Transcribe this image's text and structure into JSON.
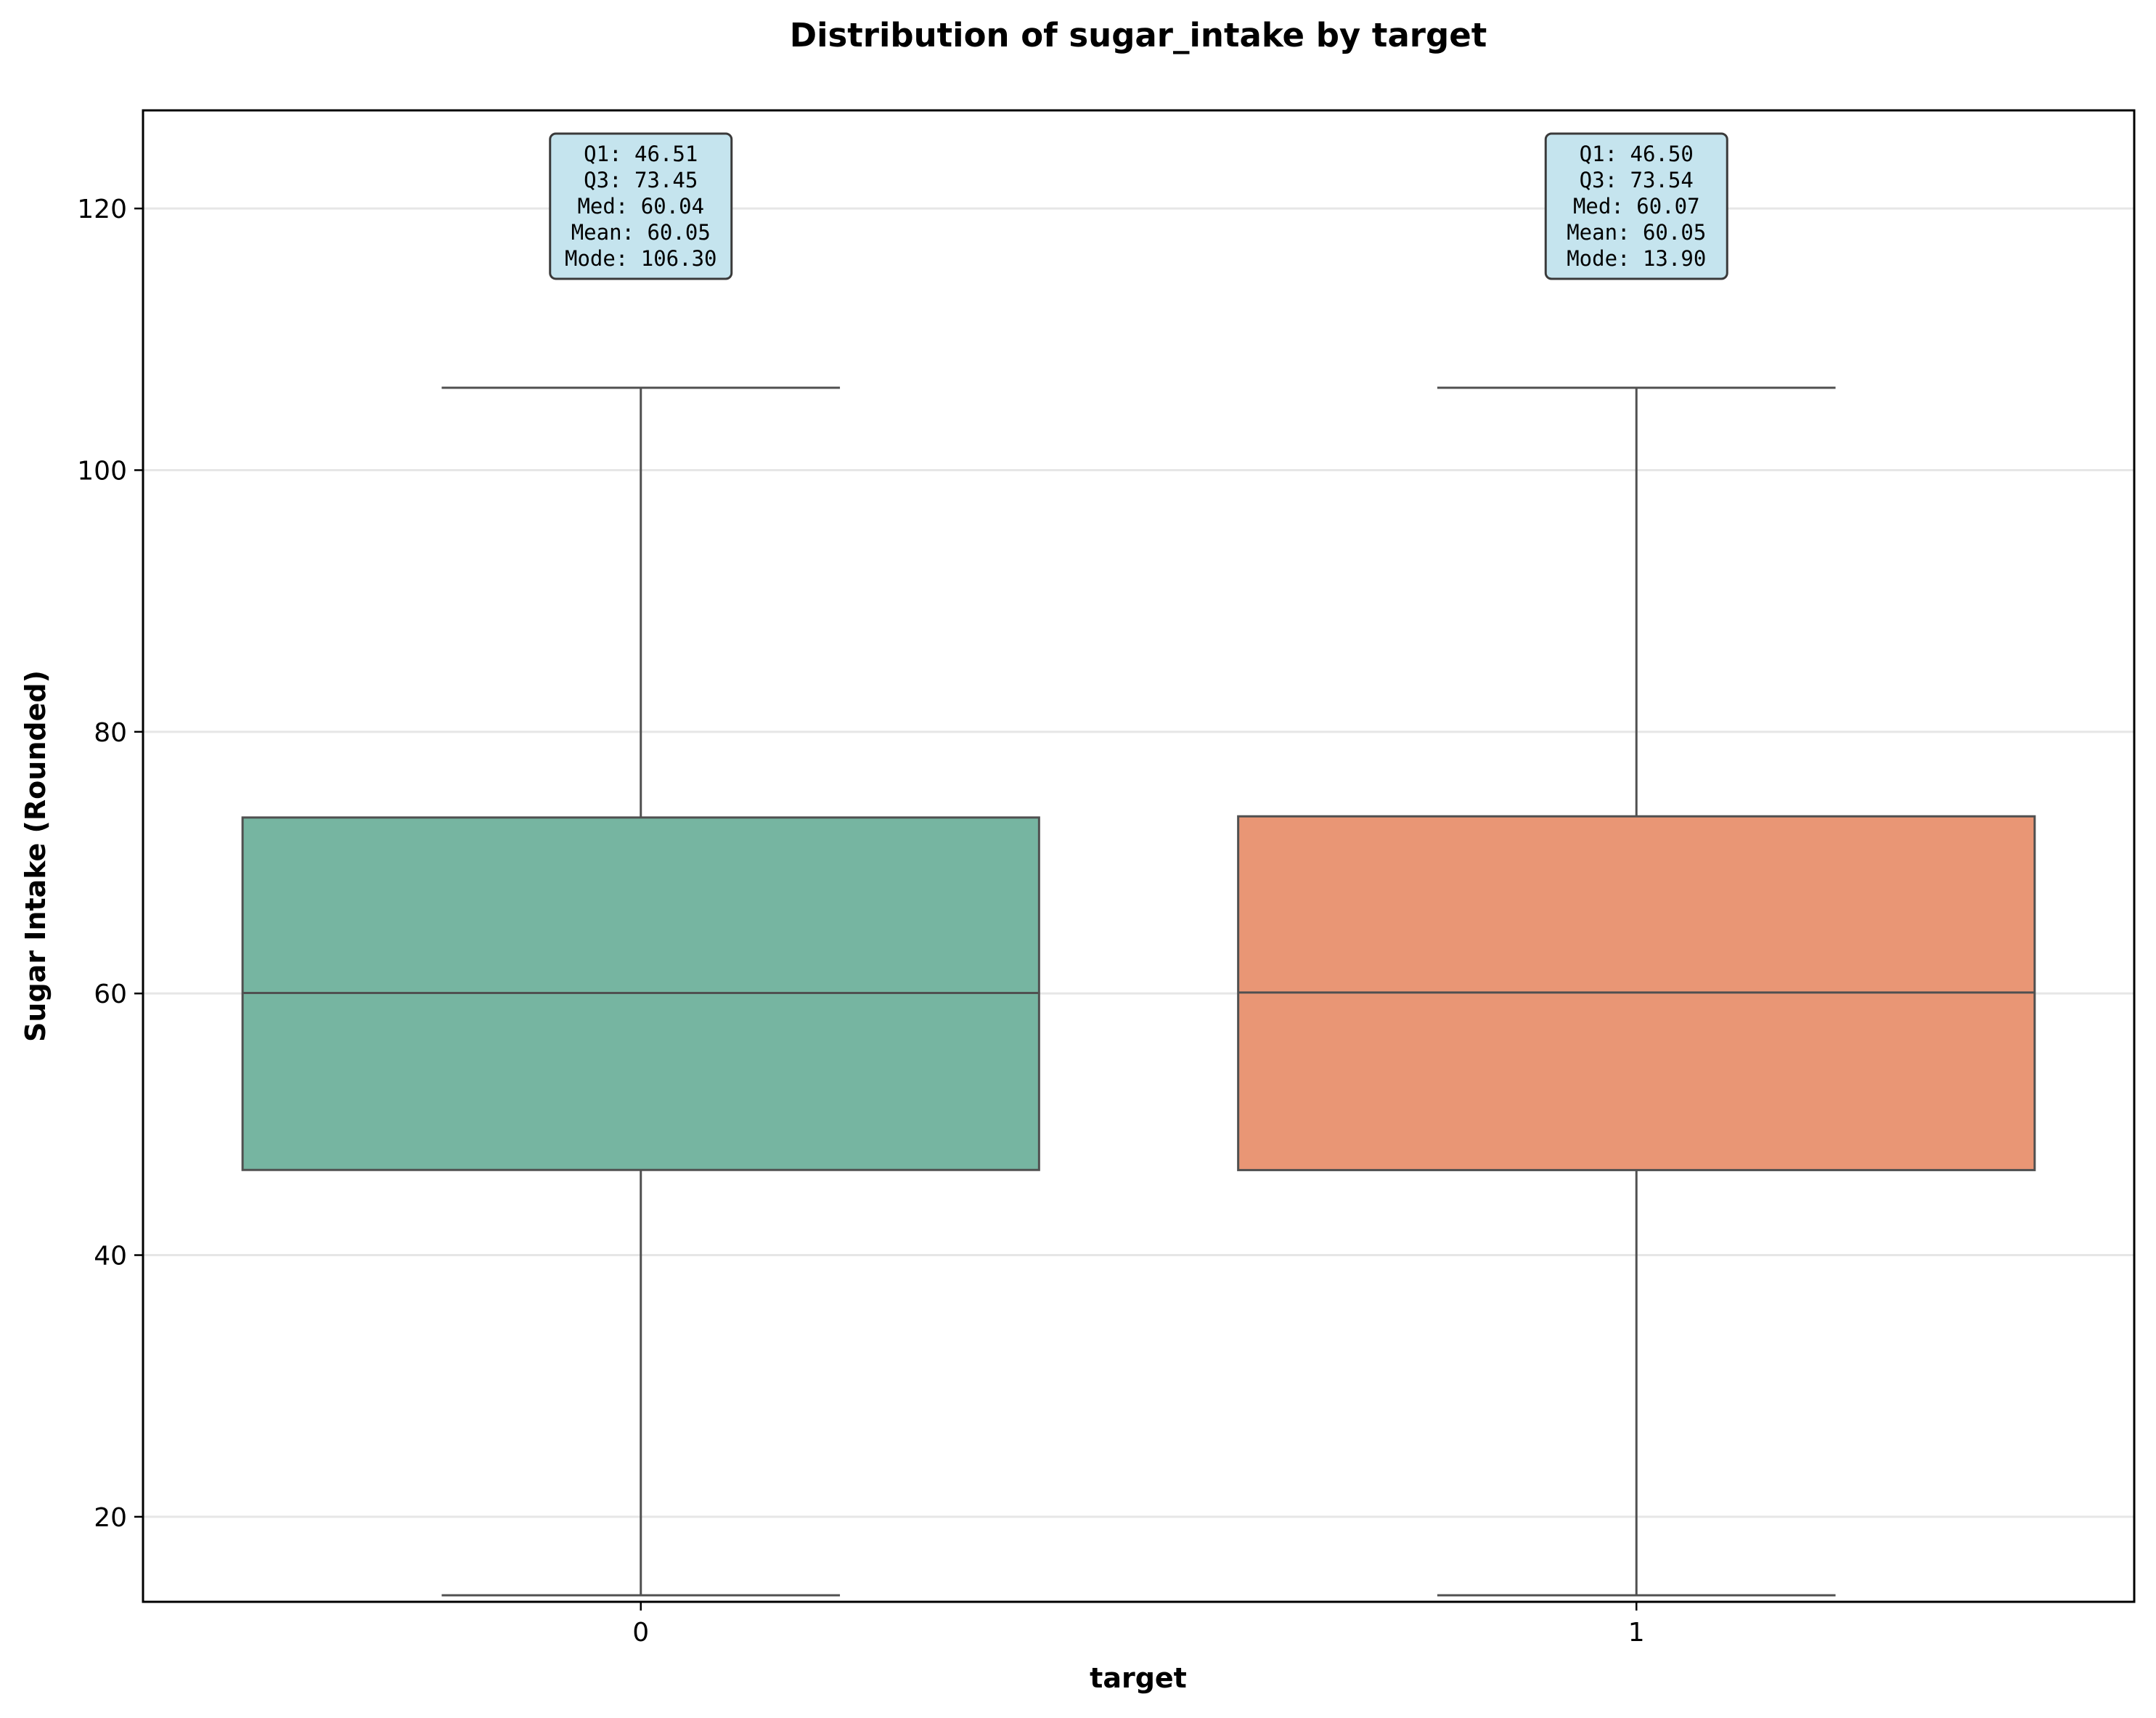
{
  "chart_data": {
    "type": "box",
    "title": "Distribution of sugar_intake by target",
    "xlabel": "target",
    "ylabel": "Sugar Intake (Rounded)",
    "ylim": [
      13.5,
      127.5
    ],
    "yticks": [
      20,
      40,
      60,
      80,
      100,
      120
    ],
    "grid": "horizontal",
    "categories": [
      "0",
      "1"
    ],
    "boxes": [
      {
        "category": "0",
        "whisker_low": 14.0,
        "q1": 46.51,
        "median": 60.04,
        "q3": 73.45,
        "whisker_high": 106.3,
        "color": "#76b5a1",
        "stats_lines": [
          "Q1: 46.51",
          "Q3: 73.45",
          "Med: 60.04",
          "Mean: 60.05",
          "Mode: 106.30"
        ]
      },
      {
        "category": "1",
        "whisker_low": 14.0,
        "q1": 46.5,
        "median": 60.07,
        "q3": 73.54,
        "whisker_high": 106.3,
        "color": "#e99675",
        "stats_lines": [
          "Q1: 46.50",
          "Q3: 73.54",
          "Med: 60.07",
          "Mean: 60.05",
          "Mode: 13.90"
        ]
      }
    ],
    "colors": {
      "line": "#505050",
      "grid": "#e6e6e6",
      "stats_box_fill": "#c5e4ee",
      "stats_box_stroke": "#3a3a3a"
    }
  }
}
